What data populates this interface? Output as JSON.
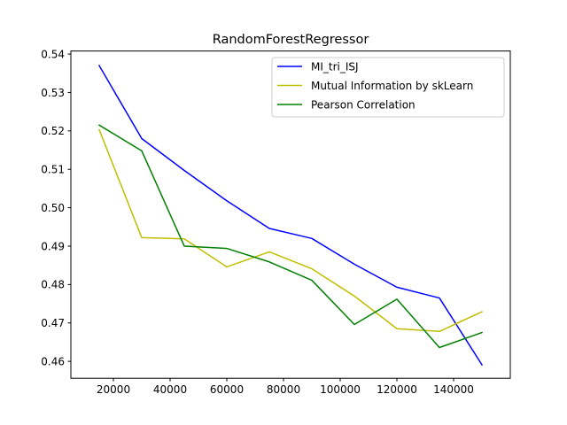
{
  "chart_data": {
    "type": "line",
    "title": "RandomForestRegressor",
    "xlabel": "",
    "ylabel": "",
    "x": [
      15000,
      30000,
      45000,
      60000,
      75000,
      90000,
      105000,
      120000,
      135000,
      150000
    ],
    "xlim": [
      5000,
      160000
    ],
    "ylim": [
      0.4556,
      0.5408
    ],
    "xticks": [
      20000,
      40000,
      60000,
      80000,
      100000,
      120000,
      140000
    ],
    "xtick_labels": [
      "20000",
      "40000",
      "60000",
      "80000",
      "100000",
      "120000",
      "140000"
    ],
    "yticks": [
      0.46,
      0.47,
      0.48,
      0.49,
      0.5,
      0.51,
      0.52,
      0.53,
      0.54
    ],
    "ytick_labels": [
      "0.46",
      "0.47",
      "0.48",
      "0.49",
      "0.50",
      "0.51",
      "0.52",
      "0.53",
      "0.54"
    ],
    "grid": false,
    "legend_position": "top-right",
    "series": [
      {
        "name": "MI_tri_ISJ",
        "color": "#0000ff",
        "values": [
          0.537,
          0.518,
          0.5097,
          0.5018,
          0.4946,
          0.492,
          0.4853,
          0.4793,
          0.4765,
          0.4591
        ]
      },
      {
        "name": "Mutual Information by skLearn",
        "color": "#bfbf00",
        "values": [
          0.5203,
          0.4922,
          0.4919,
          0.4846,
          0.4885,
          0.4841,
          0.477,
          0.4685,
          0.4678,
          0.4729
        ]
      },
      {
        "name": "Pearson Correlation",
        "color": "#008000",
        "values": [
          0.5215,
          0.5148,
          0.49,
          0.4894,
          0.4859,
          0.4811,
          0.4696,
          0.4762,
          0.4636,
          0.4675
        ]
      }
    ]
  }
}
